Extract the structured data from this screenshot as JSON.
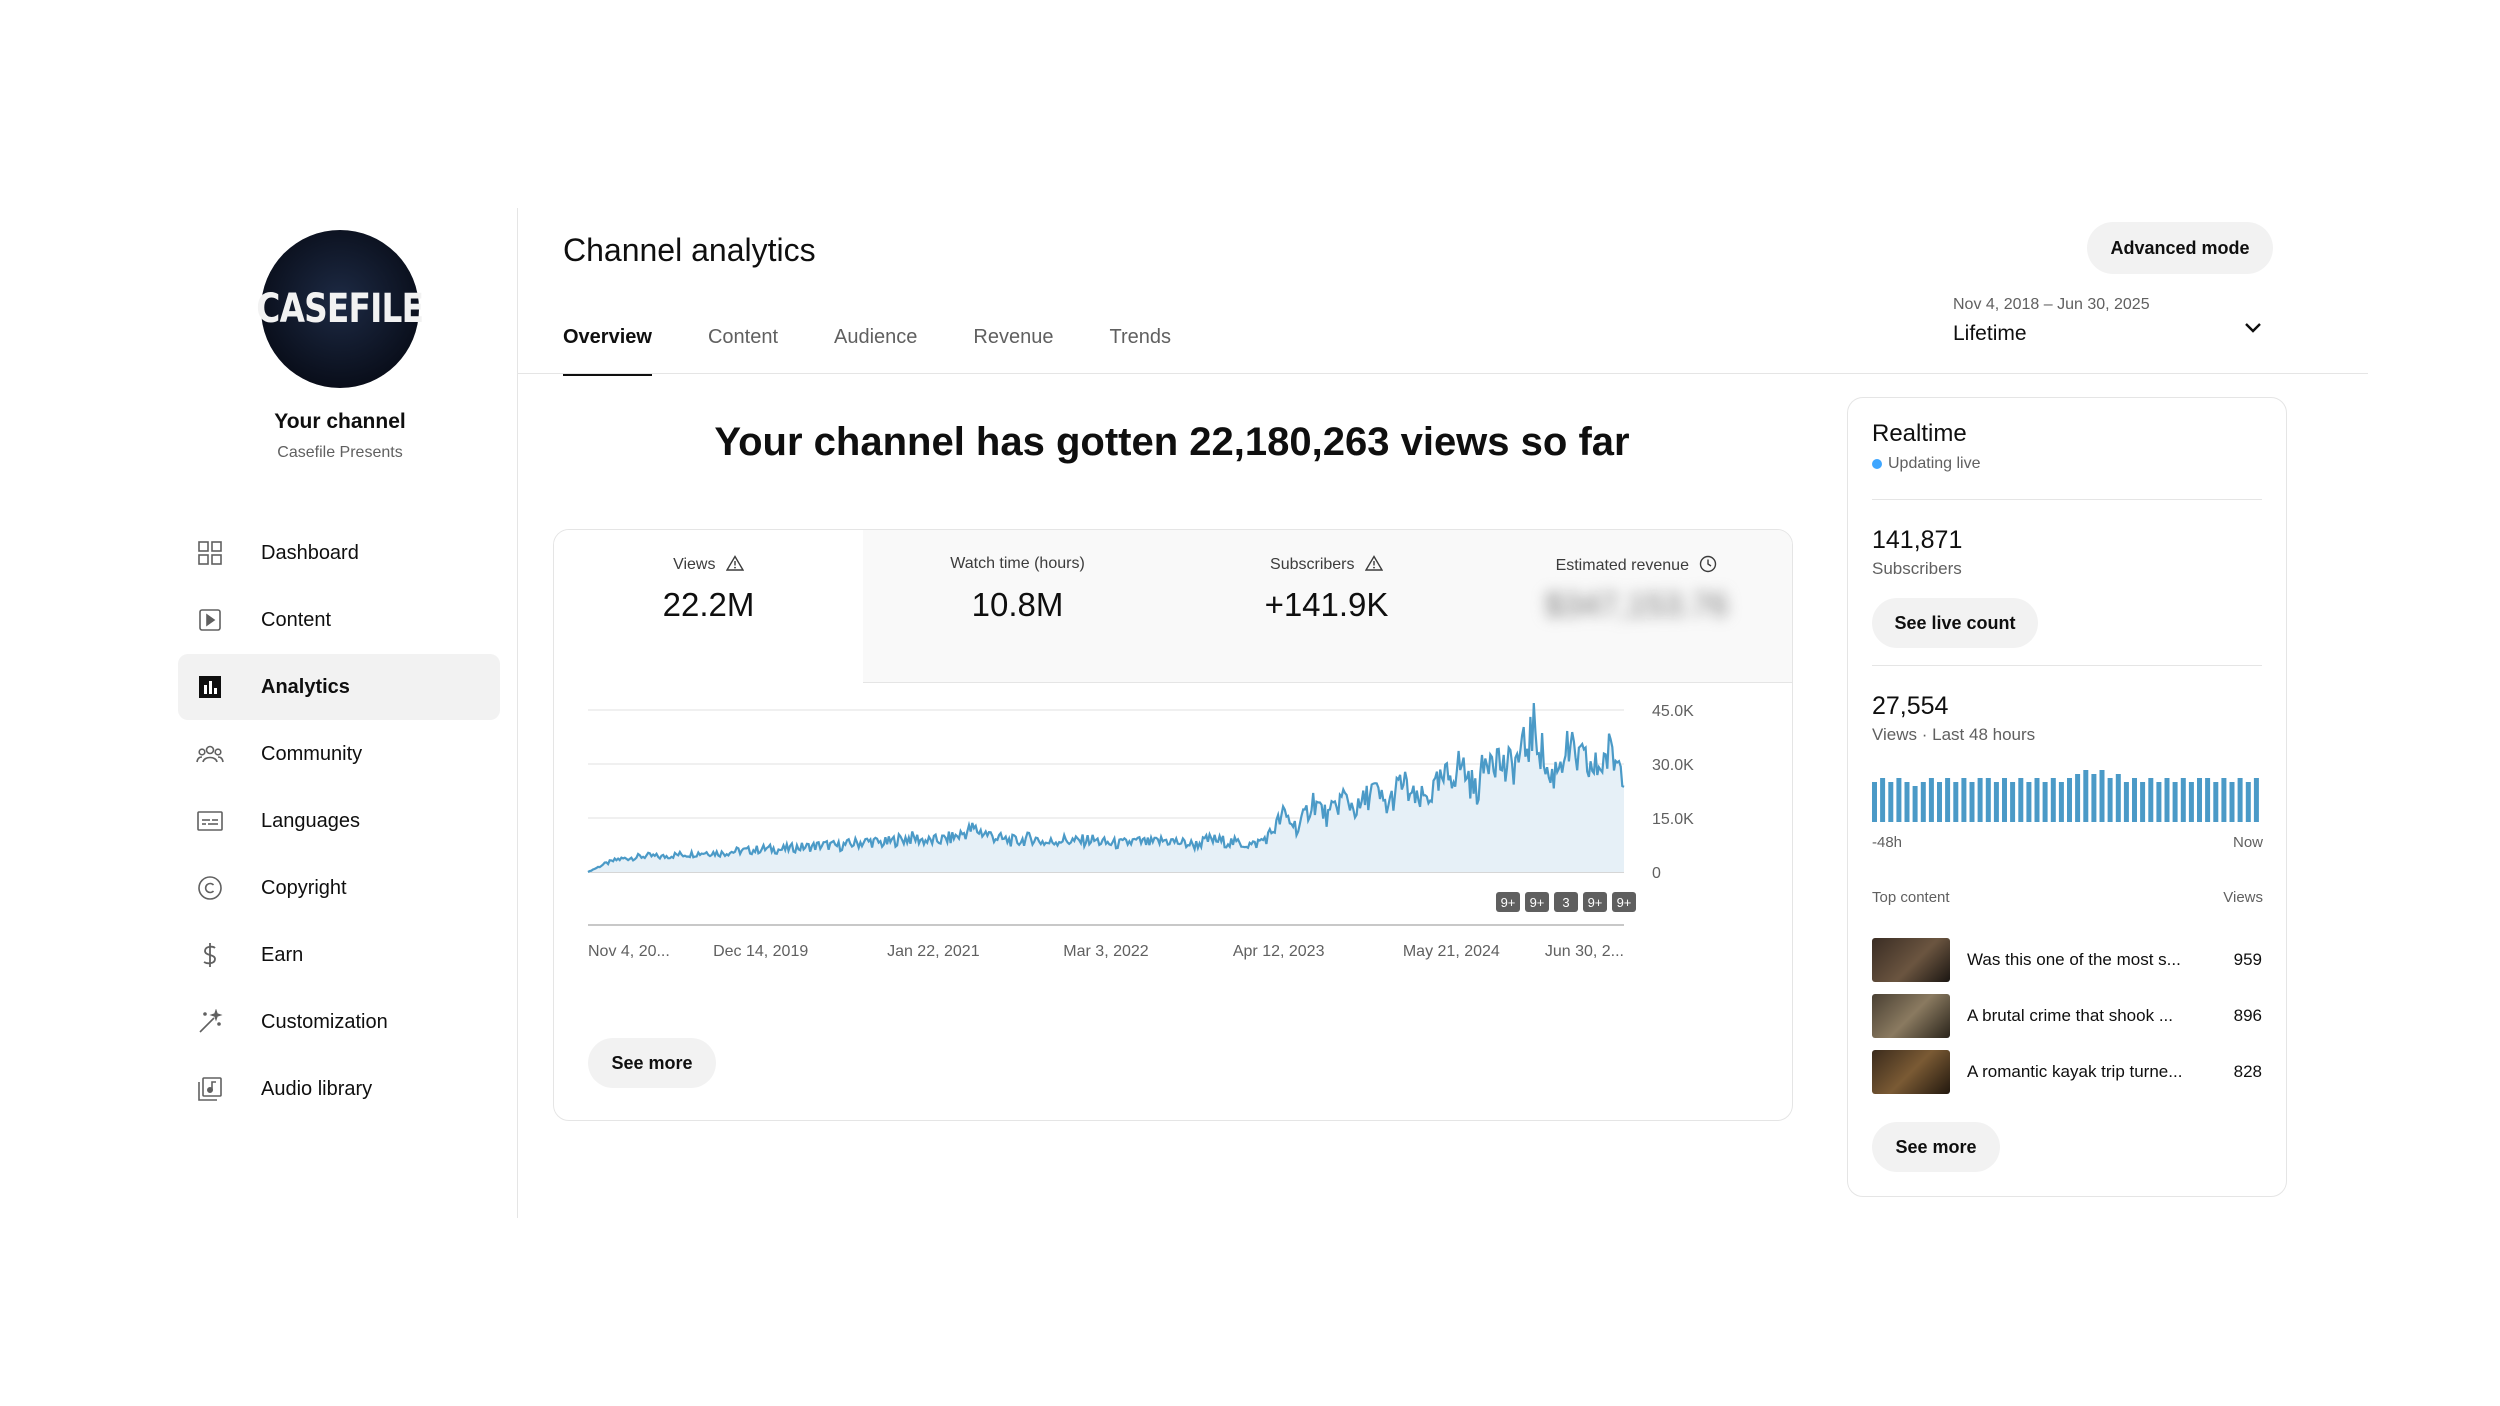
{
  "sidebar": {
    "avatar_text": "CASEFILE",
    "channel_title": "Your channel",
    "channel_name": "Casefile Presents",
    "items": [
      {
        "label": "Dashboard",
        "icon": "dashboard-icon"
      },
      {
        "label": "Content",
        "icon": "content-icon"
      },
      {
        "label": "Analytics",
        "icon": "analytics-icon",
        "active": true
      },
      {
        "label": "Community",
        "icon": "community-icon"
      },
      {
        "label": "Languages",
        "icon": "languages-icon"
      },
      {
        "label": "Copyright",
        "icon": "copyright-icon"
      },
      {
        "label": "Earn",
        "icon": "earn-icon"
      },
      {
        "label": "Customization",
        "icon": "customization-icon"
      },
      {
        "label": "Audio library",
        "icon": "audio-library-icon"
      }
    ]
  },
  "header": {
    "title": "Channel analytics",
    "advanced_mode_label": "Advanced mode",
    "tabs": [
      "Overview",
      "Content",
      "Audience",
      "Revenue",
      "Trends"
    ],
    "active_tab": "Overview",
    "date_range": "Nov 4, 2018 – Jun 30, 2025",
    "period": "Lifetime"
  },
  "main": {
    "headline": "Your channel has gotten 22,180,263 views so far",
    "metrics": [
      {
        "name": "Views",
        "value": "22.2M",
        "icon": "warning-icon"
      },
      {
        "name": "Watch time (hours)",
        "value": "10.8M"
      },
      {
        "name": "Subscribers",
        "value": "+141.9K",
        "icon": "warning-icon"
      },
      {
        "name": "Estimated revenue",
        "value": "$347,153.76",
        "icon": "clock-icon",
        "blurred": true
      }
    ],
    "see_more_label": "See more",
    "markers": [
      "9+",
      "9+",
      "3",
      "9+",
      "9+"
    ]
  },
  "chart_data": {
    "type": "area",
    "series_color": "#4b9ac7",
    "fill_color": "#e6f0f7",
    "x_start": "Nov 4, 2018",
    "x_end": "Jun 30, 2025",
    "x_tick_labels": [
      "Nov 4, 20...",
      "Dec 14, 2019",
      "Jan 22, 2021",
      "Mar 3, 2022",
      "Apr 12, 2023",
      "May 21, 2024",
      "Jun 30, 2..."
    ],
    "y_tick_labels": [
      "45.0K",
      "30.0K",
      "15.0K",
      "0"
    ],
    "ylim": [
      0,
      45000
    ],
    "grid": true,
    "series": [
      {
        "values_daily_views_sampled": [
          0,
          2000,
          3500,
          4000,
          4500,
          4200,
          4800,
          5000,
          5500,
          5200,
          5800,
          6000,
          6500,
          6200,
          6800,
          7000,
          7500,
          7200,
          8000,
          8500,
          8000,
          9000,
          9500,
          8500,
          9000,
          10000,
          12000,
          10500,
          9000,
          8500,
          9500,
          8000,
          9000,
          8500,
          9000,
          8000,
          7800,
          8500,
          8000,
          8800,
          8200,
          7500,
          9000,
          8500,
          8000,
          7500,
          10000,
          16000,
          12000,
          20000,
          15000,
          21000,
          17000,
          23000,
          18000,
          25000,
          19000,
          22000,
          26000,
          30000,
          22000,
          35000,
          28000,
          32000,
          40000,
          25000,
          34000,
          31000,
          28000,
          33000,
          29000
        ]
      }
    ]
  },
  "realtime": {
    "title": "Realtime",
    "status": "Updating live",
    "subscribers_value": "141,871",
    "subscribers_label": "Subscribers",
    "see_live_count_label": "See live count",
    "views_value": "27,554",
    "views_label": "Views · Last 48 hours",
    "axis_start": "-48h",
    "axis_end": "Now",
    "bars": [
      10,
      11,
      10,
      11,
      10,
      9,
      10,
      11,
      10,
      11,
      10,
      11,
      10,
      11,
      11,
      10,
      11,
      10,
      11,
      10,
      11,
      10,
      11,
      10,
      11,
      12,
      13,
      12,
      13,
      11,
      12,
      10,
      11,
      10,
      11,
      10,
      11,
      10,
      11,
      10,
      11,
      11,
      10,
      11,
      10,
      11,
      10,
      11
    ],
    "top_content_label": "Top content",
    "views_col_label": "Views",
    "top_content": [
      {
        "title": "Was this one of the most s...",
        "views": "959"
      },
      {
        "title": "A brutal crime that shook ...",
        "views": "896"
      },
      {
        "title": "A romantic kayak trip turne...",
        "views": "828"
      }
    ],
    "see_more_label": "See more"
  }
}
